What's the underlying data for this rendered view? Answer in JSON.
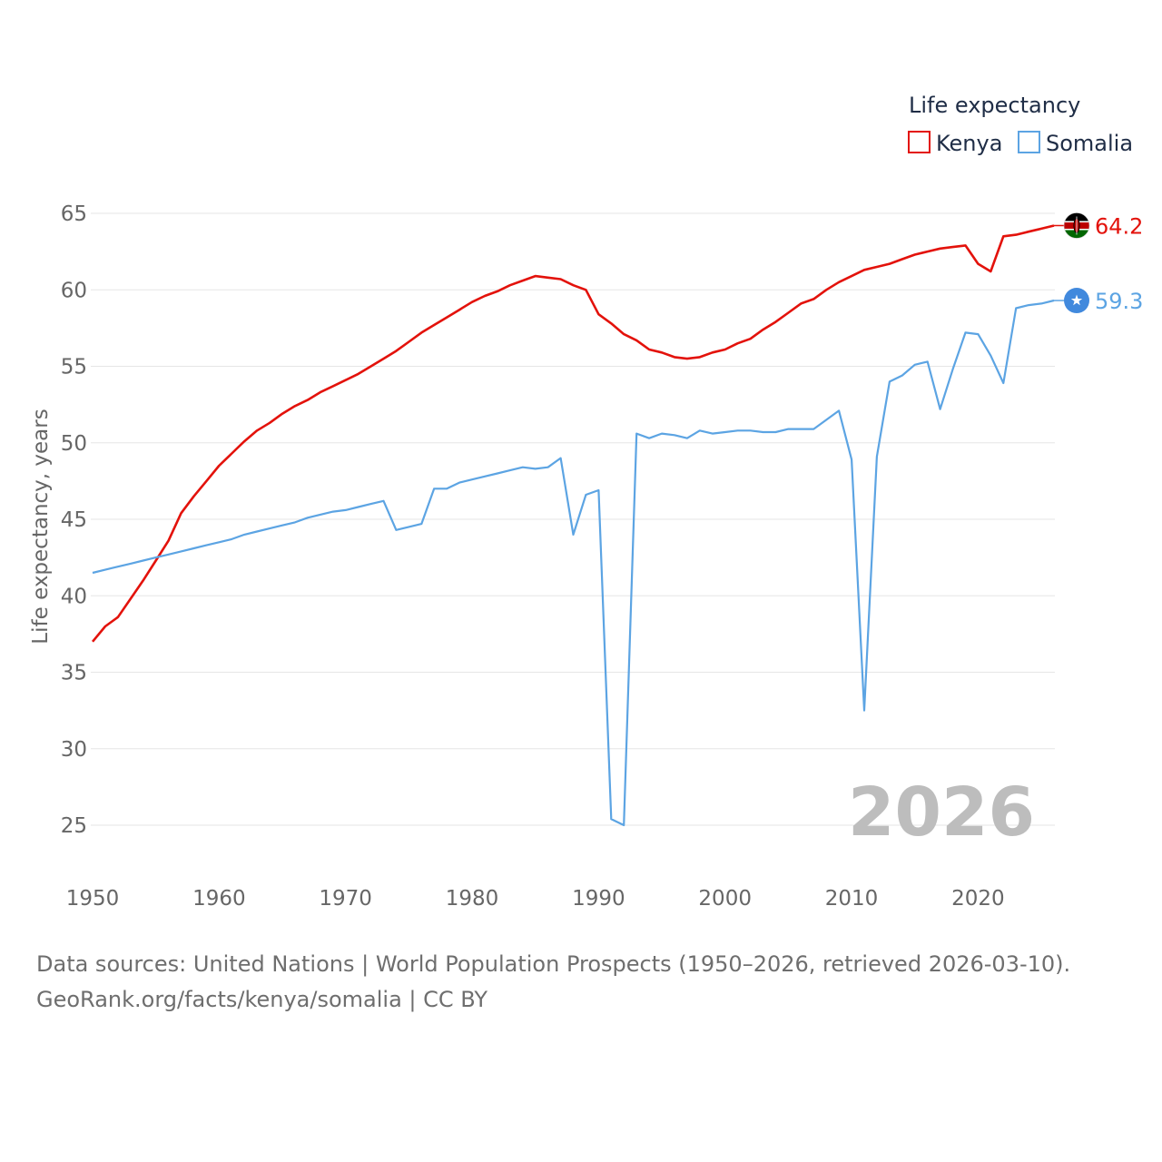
{
  "legend": {
    "title": "Life expectancy"
  },
  "footer": {
    "line1": "Data sources: United Nations | World Population Prospects (1950–2026, retrieved 2026-03-10).",
    "line2": "GeoRank.org/facts/kenya/somalia | CC BY"
  },
  "chart_data": {
    "type": "line",
    "title": "",
    "xlabel": "",
    "ylabel": "Life expectancy, years",
    "xlim": [
      1950,
      2026
    ],
    "ylim": [
      23,
      66
    ],
    "year_label": "2026",
    "x_ticks": [
      1950,
      1960,
      1970,
      1980,
      1990,
      2000,
      2010,
      2020
    ],
    "y_ticks": [
      25,
      30,
      35,
      40,
      45,
      50,
      55,
      60,
      65
    ],
    "x": [
      1950,
      1951,
      1952,
      1953,
      1954,
      1955,
      1956,
      1957,
      1958,
      1959,
      1960,
      1961,
      1962,
      1963,
      1964,
      1965,
      1966,
      1967,
      1968,
      1969,
      1970,
      1971,
      1972,
      1973,
      1974,
      1975,
      1976,
      1977,
      1978,
      1979,
      1980,
      1981,
      1982,
      1983,
      1984,
      1985,
      1986,
      1987,
      1988,
      1989,
      1990,
      1991,
      1992,
      1993,
      1994,
      1995,
      1996,
      1997,
      1998,
      1999,
      2000,
      2001,
      2002,
      2003,
      2004,
      2005,
      2006,
      2007,
      2008,
      2009,
      2010,
      2011,
      2012,
      2013,
      2014,
      2015,
      2016,
      2017,
      2018,
      2019,
      2020,
      2021,
      2022,
      2023,
      2024,
      2025,
      2026
    ],
    "series": [
      {
        "name": "Kenya",
        "color": "#e3120b",
        "end_label": "64.2",
        "flag": "kenya-flag-icon",
        "values": [
          37.0,
          38.0,
          38.6,
          39.8,
          41.0,
          42.3,
          43.6,
          45.4,
          46.5,
          47.5,
          48.5,
          49.3,
          50.1,
          50.8,
          51.3,
          51.9,
          52.4,
          52.8,
          53.3,
          53.7,
          54.1,
          54.5,
          55.0,
          55.5,
          56.0,
          56.6,
          57.2,
          57.7,
          58.2,
          58.7,
          59.2,
          59.6,
          59.9,
          60.3,
          60.6,
          60.9,
          60.8,
          60.7,
          60.3,
          60.0,
          58.4,
          57.8,
          57.1,
          56.7,
          56.1,
          55.9,
          55.6,
          55.5,
          55.6,
          55.9,
          56.1,
          56.5,
          56.8,
          57.4,
          57.9,
          58.5,
          59.1,
          59.4,
          60.0,
          60.5,
          60.9,
          61.3,
          61.5,
          61.7,
          62.0,
          62.3,
          62.5,
          62.7,
          62.8,
          62.9,
          61.7,
          61.2,
          63.5,
          63.6,
          63.8,
          64.0,
          64.2
        ]
      },
      {
        "name": "Somalia",
        "color": "#5ca4e3",
        "end_label": "59.3",
        "flag": "somalia-flag-icon",
        "values": [
          41.5,
          41.7,
          41.9,
          42.1,
          42.3,
          42.5,
          42.7,
          42.9,
          43.1,
          43.3,
          43.5,
          43.7,
          44.0,
          44.2,
          44.4,
          44.6,
          44.8,
          45.1,
          45.3,
          45.5,
          45.6,
          45.8,
          46.0,
          46.2,
          44.3,
          44.5,
          44.7,
          47.0,
          47.0,
          47.4,
          47.6,
          47.8,
          48.0,
          48.2,
          48.4,
          48.3,
          48.4,
          49.0,
          44.0,
          46.6,
          46.9,
          25.4,
          25.0,
          50.6,
          50.3,
          50.6,
          50.5,
          50.3,
          50.8,
          50.6,
          50.7,
          50.8,
          50.8,
          50.7,
          50.7,
          50.9,
          50.9,
          50.9,
          51.5,
          52.1,
          48.9,
          32.5,
          49.1,
          54.0,
          54.4,
          55.1,
          55.3,
          52.2,
          54.8,
          57.2,
          57.1,
          55.7,
          53.9,
          58.8,
          59.0,
          59.1,
          59.3
        ]
      }
    ]
  }
}
